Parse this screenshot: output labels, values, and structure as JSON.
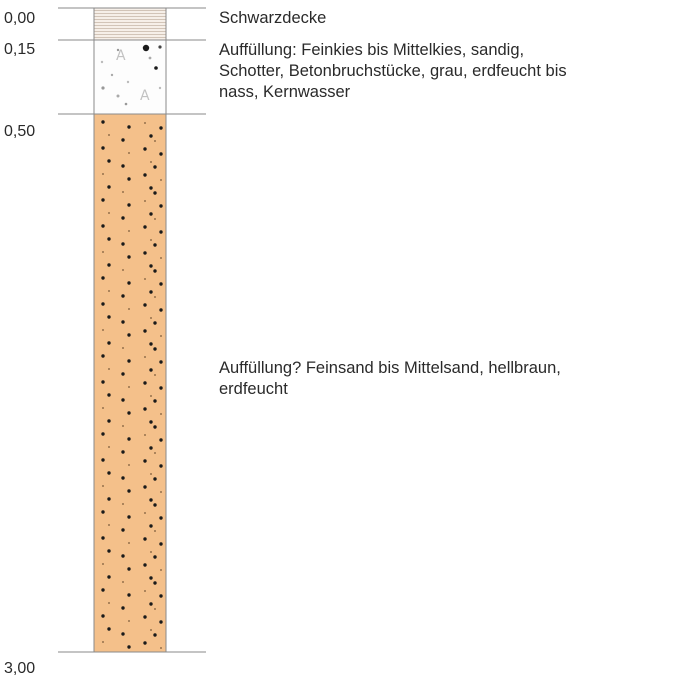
{
  "layers": [
    {
      "top_label": "0,00",
      "bottom_label": "0,15",
      "top_m": 0.0,
      "bottom_m": 0.15,
      "pattern": "asphalt-hatch",
      "color": "#f4ede6",
      "description_lines": [
        "Schwarzdecke"
      ]
    },
    {
      "top_label": "0,15",
      "bottom_label": "0,50",
      "top_m": 0.15,
      "bottom_m": 0.5,
      "pattern": "gravel-fill",
      "color": "#fdfdfd",
      "description_lines": [
        "Auffüllung: Feinkies bis Mittelkies, sandig,",
        "Schotter, Betonbruchstücke, grau, erdfeucht bis",
        "nass, Kernwasser"
      ]
    },
    {
      "top_label": "0,50",
      "bottom_label": "3,00",
      "top_m": 0.5,
      "bottom_m": 3.0,
      "pattern": "sand-dots",
      "color": "#f4c08a",
      "description_lines": [
        "Auffüllung? Feinsand bis Mittelsand, hellbraun,",
        "erdfeucht"
      ]
    }
  ],
  "depth_labels": [
    "0,00",
    "0,15",
    "0,50",
    "3,00"
  ],
  "colors": {
    "outline": "#6b6b6b",
    "text": "#2a2a2a",
    "dot": "#1a1a1a",
    "sand": "#f4c08a"
  }
}
